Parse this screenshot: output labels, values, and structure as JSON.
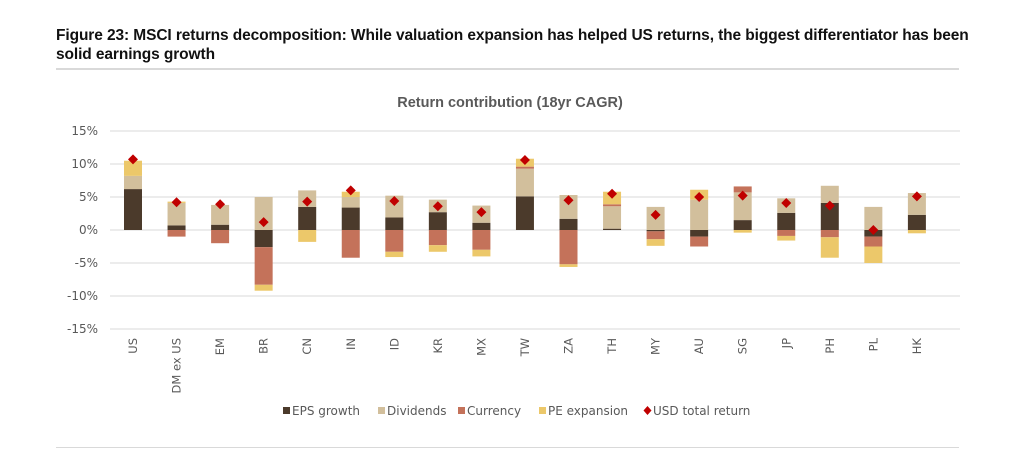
{
  "figure": {
    "title": "Figure 23: MSCI returns decomposition: While valuation expansion has helped US returns, the biggest differentiator has been solid earnings growth"
  },
  "chart_data": {
    "type": "bar",
    "stacked": true,
    "title": "Return contribution (18yr CAGR)",
    "xlabel": "",
    "ylabel": "",
    "ylim": [
      -15,
      15
    ],
    "yticks": [
      15,
      10,
      5,
      0,
      -5,
      -10,
      -15
    ],
    "ytick_labels": [
      "15%",
      "10%",
      "5%",
      "0%",
      "-5%",
      "-10%",
      "-15%"
    ],
    "grid": true,
    "legend_position": "bottom",
    "categories": [
      "US",
      "DM ex US",
      "EM",
      "BR",
      "CN",
      "IN",
      "ID",
      "KR",
      "MX",
      "TW",
      "ZA",
      "TH",
      "MY",
      "AU",
      "SG",
      "JP",
      "PH",
      "PL",
      "HK"
    ],
    "series": [
      {
        "name": "EPS growth",
        "kind": "bar",
        "color": "#4b3a2b",
        "values": [
          6.2,
          0.7,
          0.8,
          -2.6,
          3.5,
          3.4,
          1.9,
          2.7,
          1.1,
          5.1,
          1.7,
          0.2,
          -0.2,
          -1.0,
          1.5,
          2.6,
          4.1,
          -1.0,
          2.3
        ]
      },
      {
        "name": "Dividends",
        "kind": "bar",
        "color": "#d2bf9c",
        "values": [
          2.0,
          3.4,
          3.0,
          5.0,
          2.5,
          1.6,
          3.3,
          1.9,
          2.6,
          4.2,
          3.6,
          3.4,
          3.5,
          4.6,
          4.2,
          2.2,
          2.6,
          3.5,
          3.3
        ]
      },
      {
        "name": "Currency",
        "kind": "bar",
        "color": "#c4725a",
        "values": [
          0.0,
          -1.0,
          -2.0,
          -5.7,
          0.0,
          -4.2,
          -3.3,
          -2.3,
          -3.0,
          0.3,
          -5.2,
          0.3,
          -1.2,
          -1.5,
          0.9,
          -0.9,
          -1.1,
          -1.5,
          0.0
        ]
      },
      {
        "name": "PE expansion",
        "kind": "bar",
        "color": "#ecc86a",
        "values": [
          2.3,
          0.2,
          0.0,
          -0.9,
          -1.8,
          0.8,
          -0.8,
          -1.0,
          -1.0,
          1.2,
          -0.4,
          1.9,
          -1.0,
          1.5,
          -0.4,
          -0.7,
          -3.1,
          -2.5,
          -0.5
        ]
      },
      {
        "name": "USD total return",
        "kind": "marker",
        "color": "#c00000",
        "values": [
          10.7,
          4.2,
          3.9,
          1.2,
          4.3,
          6.0,
          4.4,
          3.6,
          2.7,
          10.6,
          4.5,
          5.5,
          2.3,
          5.0,
          5.2,
          4.1,
          3.7,
          0.0,
          5.1
        ]
      }
    ]
  }
}
